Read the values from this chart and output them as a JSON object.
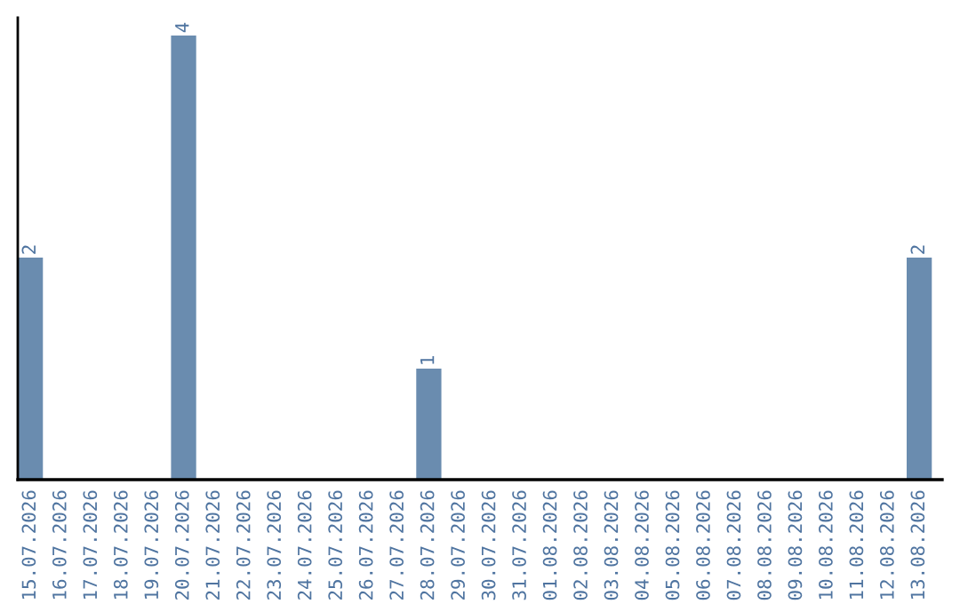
{
  "chart_data": {
    "type": "bar",
    "categories": [
      "15.07.2026",
      "16.07.2026",
      "17.07.2026",
      "18.07.2026",
      "19.07.2026",
      "20.07.2026",
      "21.07.2026",
      "22.07.2026",
      "23.07.2026",
      "24.07.2026",
      "25.07.2026",
      "26.07.2026",
      "27.07.2026",
      "28.07.2026",
      "29.07.2026",
      "30.07.2026",
      "31.07.2026",
      "01.08.2026",
      "02.08.2026",
      "03.08.2026",
      "04.08.2026",
      "05.08.2026",
      "06.08.2026",
      "07.08.2026",
      "08.08.2026",
      "09.08.2026",
      "10.08.2026",
      "11.08.2026",
      "12.08.2026",
      "13.08.2026"
    ],
    "values": [
      2,
      0,
      0,
      0,
      0,
      4,
      0,
      0,
      0,
      0,
      0,
      0,
      0,
      1,
      0,
      0,
      0,
      0,
      0,
      0,
      0,
      0,
      0,
      0,
      0,
      0,
      0,
      0,
      0,
      2
    ],
    "value_labels": [
      "2",
      null,
      null,
      null,
      null,
      "4",
      null,
      null,
      null,
      null,
      null,
      null,
      null,
      "1",
      null,
      null,
      null,
      null,
      null,
      null,
      null,
      null,
      null,
      null,
      null,
      null,
      null,
      null,
      null,
      "2"
    ],
    "color": "#6a8caf",
    "tick_labels": "x",
    "grid": false,
    "legend": false
  }
}
